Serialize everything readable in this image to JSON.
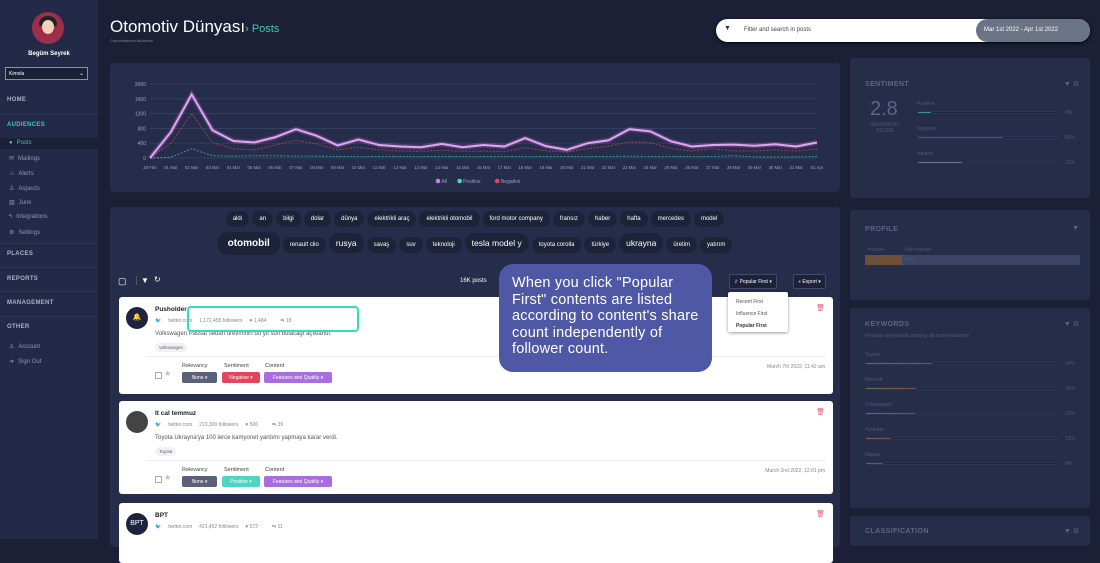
{
  "user": {
    "name": "Begüm Seyrek",
    "workspace": "Kimola"
  },
  "sidebar": {
    "sections": [
      "HOME",
      "AUDIENCES",
      "PLACES",
      "REPORTS",
      "MANAGEMENT",
      "OTHER"
    ],
    "audience_items": [
      {
        "label": "Posts",
        "icon": "comment-icon"
      },
      {
        "label": "Mailings",
        "icon": "mail-icon"
      },
      {
        "label": "Alerts",
        "icon": "bell-icon"
      },
      {
        "label": "Aspects",
        "icon": "user-icon"
      },
      {
        "label": "Junk",
        "icon": "trash-icon"
      },
      {
        "label": "Integrations",
        "icon": "plug-icon"
      },
      {
        "label": "Settings",
        "icon": "gear-icon"
      }
    ],
    "other_items": [
      {
        "label": "Account",
        "icon": "user-icon"
      },
      {
        "label": "Sign Out",
        "icon": "sign-out-icon"
      }
    ]
  },
  "header": {
    "title": "Otomotiv Dünyası",
    "crumb": "› Posts",
    "subtitle": "Conversations Audience",
    "search_placeholder": "Filter and search in posts",
    "date_range": "Mar 1st 2022 - Apr 1st 2022"
  },
  "chart_data": {
    "type": "line",
    "categories": [
      "28 Feb",
      "01 Mar",
      "02 Mar",
      "03 Mar",
      "04 Mar",
      "05 Mar",
      "06 Mar",
      "07 Mar",
      "08 Mar",
      "09 Mar",
      "10 Mar",
      "11 Mar",
      "12 Mar",
      "13 Mar",
      "14 Mar",
      "15 Mar",
      "16 Mar",
      "17 Mar",
      "18 Mar",
      "19 Mar",
      "20 Mar",
      "21 Mar",
      "22 Mar",
      "23 Mar",
      "24 Mar",
      "25 Mar",
      "26 Mar",
      "27 Mar",
      "28 Mar",
      "29 Mar",
      "30 Mar",
      "31 Mar",
      "01 Apr"
    ],
    "yticks": [
      0,
      400,
      800,
      1200,
      1600,
      2000
    ],
    "ylim": [
      0,
      2000
    ],
    "grid": true,
    "legend": "bottom",
    "series": [
      {
        "name": "All",
        "color": "#d57be8",
        "values": [
          0,
          700,
          1720,
          750,
          460,
          420,
          560,
          780,
          600,
          340,
          500,
          350,
          310,
          290,
          380,
          290,
          350,
          310,
          540,
          320,
          220,
          400,
          480,
          780,
          720,
          450,
          310,
          350,
          360,
          330,
          370,
          310,
          420
        ]
      },
      {
        "name": "Positive",
        "color": "#4fd6c0",
        "values": [
          0,
          20,
          250,
          60,
          50,
          60,
          60,
          50,
          50,
          40,
          40,
          40,
          40,
          40,
          40,
          40,
          40,
          40,
          40,
          40,
          40,
          40,
          40,
          50,
          40,
          40,
          40,
          40,
          60,
          30,
          30,
          30,
          40
        ]
      },
      {
        "name": "Negative",
        "color": "#e0475e",
        "values": [
          0,
          400,
          1200,
          420,
          250,
          220,
          350,
          480,
          380,
          220,
          290,
          220,
          190,
          180,
          210,
          180,
          190,
          170,
          280,
          190,
          160,
          250,
          320,
          440,
          410,
          260,
          190,
          250,
          190,
          190,
          220,
          190,
          240
        ]
      }
    ]
  },
  "tags": {
    "row1": [
      "aldı",
      "an",
      "bilgi",
      "dolar",
      "dünya",
      "elektrikli araç",
      "elektrikli otomobil",
      "ford motor company",
      "fransız",
      "haber",
      "hafta",
      "mercedes",
      "model"
    ],
    "row2": [
      {
        "t": "otomobil",
        "s": "big"
      },
      {
        "t": "renault clio",
        "s": ""
      },
      {
        "t": "rusya",
        "s": "med"
      },
      {
        "t": "savaş",
        "s": ""
      },
      {
        "t": "suv",
        "s": ""
      },
      {
        "t": "teknoloji",
        "s": ""
      },
      {
        "t": "tesla model y",
        "s": "med"
      },
      {
        "t": "toyota corolla",
        "s": ""
      },
      {
        "t": "türkiye",
        "s": ""
      },
      {
        "t": "ukrayna",
        "s": "med"
      },
      {
        "t": "üretim",
        "s": ""
      },
      {
        "t": "yatırım",
        "s": ""
      }
    ]
  },
  "toolbar": {
    "count": "16K posts",
    "sort": "Popular First ▾",
    "export": "Export ▾",
    "sort_options": [
      "Recent First",
      "Influence First",
      "Popular First"
    ]
  },
  "labels": {
    "relevancy": "Relevancy",
    "sentiment": "Sentiment",
    "content": "Content"
  },
  "posts": [
    {
      "author": "Pusholder",
      "avatar": "bell-icon",
      "source": "twitter.com",
      "followers": "1,172,455 followers",
      "likes": "1,484",
      "shares": "18",
      "text": "Volkswagen Passat sedan üretiminin bu yıl son bulacağı açıklandı.",
      "keyword": "Volkswagen",
      "relevancy": "None ▾",
      "sentiment": "Negative ▾",
      "sentiment_color": "#e0475e",
      "content": "Features and Quality ▾",
      "time": "March 7th 2022, 11:42 am"
    },
    {
      "author": "It cal temmuz",
      "avatar": "photo",
      "source": "twitter.com",
      "followers": "213,309 followers",
      "likes": "506",
      "shares": "39",
      "text": "Toyota Ukrayna'ya 100 lerce kamyonet yardımı yapmaya karar verdi.",
      "keyword": "Toyota",
      "relevancy": "None ▾",
      "sentiment": "Positive ▾",
      "sentiment_color": "#4fd6c0",
      "content": "Features and Quality ▾",
      "time": "March 2nd 2022, 12:01 pm"
    },
    {
      "author": "BPT",
      "avatar": "BPT",
      "source": "twitter.com",
      "followers": "421,452 followers",
      "likes": "572",
      "shares": "11"
    }
  ],
  "tooltip": "When you click \"Popular First\" contents are listed according to content's share count independently of follower count.",
  "right": {
    "sentiment": {
      "title": "SENTIMENT",
      "score": "2.8",
      "score_label": "SENTIMENT SCORE",
      "rows": [
        {
          "label": "Positive",
          "pct": 9,
          "text": "9%",
          "color": "#3f8f8a"
        },
        {
          "label": "Negative",
          "pct": 60,
          "text": "60%",
          "color": "#8e3650"
        },
        {
          "label": "Neutral",
          "pct": 31,
          "text": "31%",
          "color": "#6a7290"
        }
      ]
    },
    "profile": {
      "title": "PROFILE",
      "human": "Human",
      "nonhuman": "Non-human",
      "human_pct": "17%",
      "nonhuman_pct": "83%",
      "human_value": 17
    },
    "keywords": {
      "title": "KEYWORDS",
      "subtitle": "Popular keywords among all conversations",
      "rows": [
        {
          "label": "Toyota",
          "pct": 34,
          "text": "34%"
        },
        {
          "label": "Renault",
          "pct": 26,
          "text": "26%"
        },
        {
          "label": "Volkswagen",
          "pct": 25,
          "text": "25%"
        },
        {
          "label": "Hyundai",
          "pct": 13,
          "text": "13%"
        },
        {
          "label": "Nissan",
          "pct": 9,
          "text": "9%"
        }
      ]
    },
    "classification": {
      "title": "CLASSIFICATION"
    }
  }
}
